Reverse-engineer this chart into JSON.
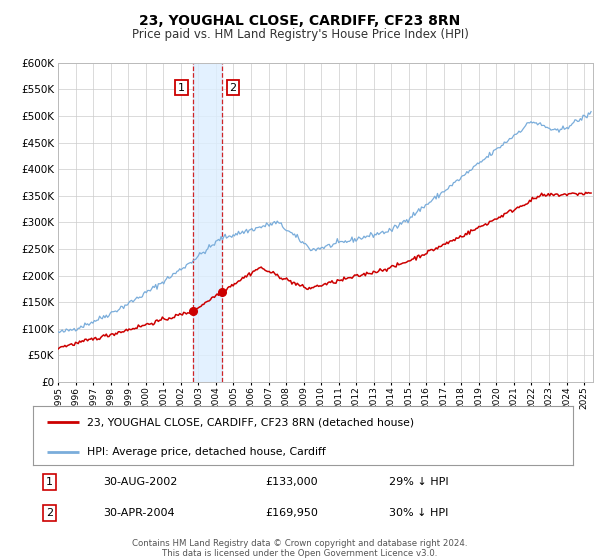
{
  "title": "23, YOUGHAL CLOSE, CARDIFF, CF23 8RN",
  "subtitle": "Price paid vs. HM Land Registry's House Price Index (HPI)",
  "ylim": [
    0,
    600000
  ],
  "yticks": [
    0,
    50000,
    100000,
    150000,
    200000,
    250000,
    300000,
    350000,
    400000,
    450000,
    500000,
    550000,
    600000
  ],
  "xlim_start": 1995.0,
  "xlim_end": 2025.5,
  "line1_color": "#cc0000",
  "line2_color": "#7aaddb",
  "marker_color": "#cc0000",
  "vline1_x": 2002.667,
  "vline2_x": 2004.333,
  "shade_color": "#ddeeff",
  "transaction1_date": "30-AUG-2002",
  "transaction1_price": 133000,
  "transaction1_pct": "29%",
  "transaction2_date": "30-APR-2004",
  "transaction2_price": 169950,
  "transaction2_pct": "30%",
  "legend1_label": "23, YOUGHAL CLOSE, CARDIFF, CF23 8RN (detached house)",
  "legend2_label": "HPI: Average price, detached house, Cardiff",
  "footer1": "Contains HM Land Registry data © Crown copyright and database right 2024.",
  "footer2": "This data is licensed under the Open Government Licence v3.0.",
  "grid_color": "#cccccc",
  "box_label1": "1",
  "box_label2": "2"
}
